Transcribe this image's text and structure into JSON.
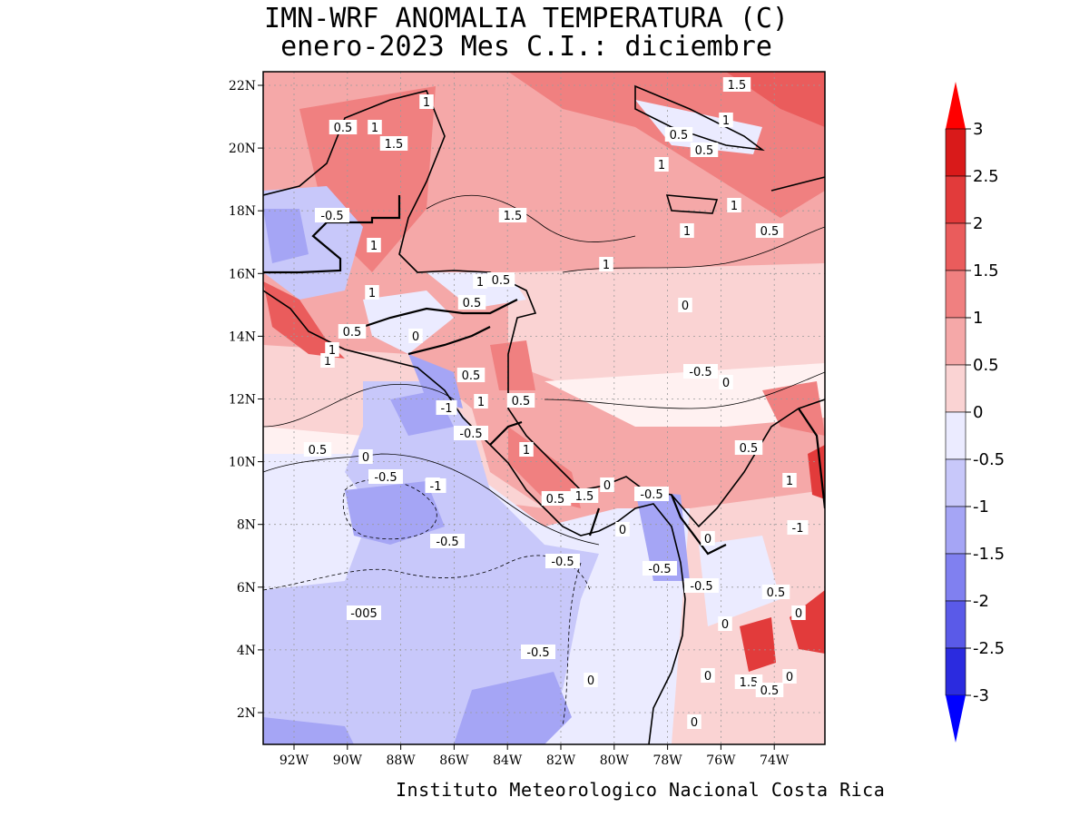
{
  "title": {
    "line1": "IMN-WRF  ANOMALIA TEMPERATURA (C)",
    "line2": "enero-2023 Mes C.I.: diciembre"
  },
  "footer": "Instituto Meteorologico Nacional Costa Rica",
  "map": {
    "lon_ticks": [
      "92W",
      "90W",
      "88W",
      "86W",
      "84W",
      "82W",
      "80W",
      "78W",
      "76W",
      "74W"
    ],
    "lat_ticks": [
      "22N",
      "20N",
      "18N",
      "16N",
      "14N",
      "12N",
      "10N",
      "8N",
      "6N",
      "4N",
      "2N"
    ],
    "grid": true,
    "contour_labels": [
      "1.5",
      "1",
      "0.5",
      "1",
      "1.5",
      "1",
      "1",
      "1.5",
      "0.5",
      "0.5",
      "1",
      "1",
      "1",
      "-0.5",
      "1",
      "1",
      "0.5",
      "1",
      "1",
      "0.5",
      "0",
      "-0.5",
      "0",
      "0.5",
      "0.5",
      "0.5",
      "0",
      "1",
      "1",
      "0.5",
      "-1",
      "1",
      "-0.5",
      "0.5",
      "1",
      "0",
      "0.5",
      "0",
      "-0.5",
      "-1",
      "0.5",
      "1.5",
      "0",
      "-0.5",
      "0",
      "0.5",
      "1",
      "-0.5",
      "-0.5",
      "0",
      "-005",
      "-1",
      "-0.5",
      "0.5",
      "-0.5",
      "0",
      "0",
      "-0.5",
      "0",
      "0",
      "1.5",
      "0.5",
      "0"
    ]
  },
  "colorbar": {
    "labels": [
      "3",
      "2.5",
      "2",
      "1.5",
      "1",
      "0.5",
      "0",
      "-0.5",
      "-1",
      "-1.5",
      "-2",
      "-2.5",
      "-3"
    ],
    "colors": [
      "#d91a1a",
      "#e23b3b",
      "#ea5c5c",
      "#f08080",
      "#f5a8a8",
      "#fad3d3",
      "#fff1f1",
      "#ebebff",
      "#c8c8fa",
      "#a5a5f5",
      "#8080f0",
      "#5a5ae8",
      "#2b2bdf"
    ],
    "arrow_top_color": "#ff0000",
    "arrow_bottom_color": "#0000ff"
  }
}
